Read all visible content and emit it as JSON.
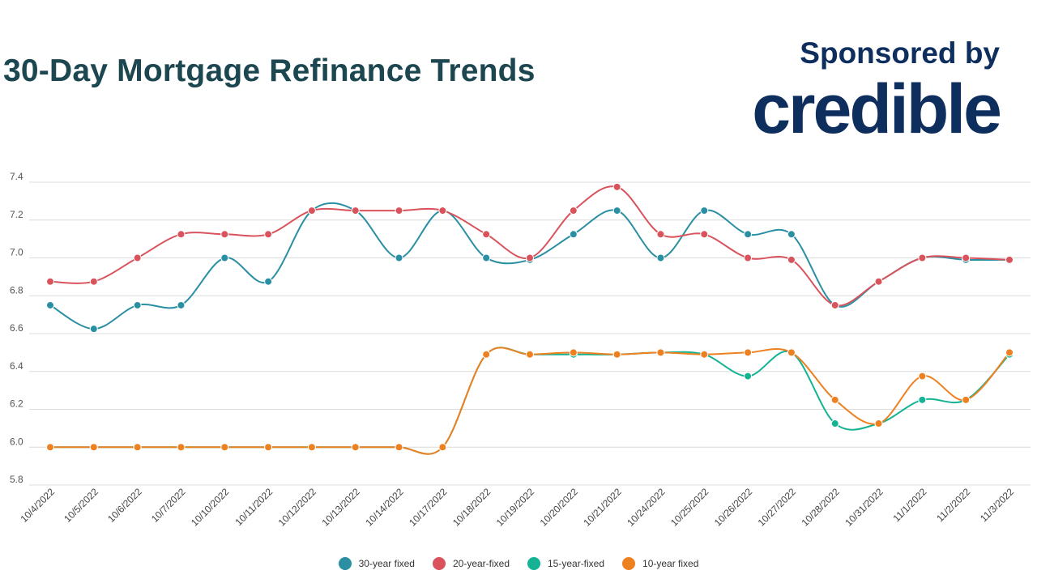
{
  "title": "30-Day Mortgage Refinance Trends",
  "sponsor": {
    "label": "Sponsored by",
    "logo_text": "credible",
    "color": "#0e2e5e"
  },
  "chart_data": {
    "type": "line",
    "title": "30-Day Mortgage Refinance Trends",
    "xlabel": "",
    "ylabel": "",
    "ylim": [
      5.8,
      7.4
    ],
    "yticks": [
      "5.8",
      "6.0",
      "6.2",
      "6.4",
      "6.6",
      "6.8",
      "7.0",
      "7.2",
      "7.4"
    ],
    "grid": true,
    "legend_position": "bottom",
    "categories": [
      "10/4/2022",
      "10/5/2022",
      "10/6/2022",
      "10/7/2022",
      "10/10/2022",
      "10/11/2022",
      "10/12/2022",
      "10/13/2022",
      "10/14/2022",
      "10/17/2022",
      "10/18/2022",
      "10/19/2022",
      "10/20/2022",
      "10/21/2022",
      "10/24/2022",
      "10/25/2022",
      "10/26/2022",
      "10/27/2022",
      "10/28/2022",
      "10/31/2022",
      "11/1/2022",
      "11/2/2022",
      "11/3/2022"
    ],
    "series": [
      {
        "name": "30-year fixed",
        "color": "#2a8fa2",
        "values": [
          6.75,
          6.625,
          6.75,
          6.75,
          7.0,
          6.875,
          7.25,
          7.25,
          7.0,
          7.25,
          7.0,
          6.99,
          7.125,
          7.25,
          7.0,
          7.25,
          7.125,
          7.125,
          6.75,
          6.875,
          7.0,
          6.99,
          6.99
        ]
      },
      {
        "name": "20-year-fixed",
        "color": "#d9535c",
        "values": [
          6.875,
          6.875,
          7.0,
          7.125,
          7.125,
          7.125,
          7.25,
          7.25,
          7.25,
          7.25,
          7.125,
          7.0,
          7.25,
          7.375,
          7.125,
          7.125,
          7.0,
          6.99,
          6.75,
          6.875,
          7.0,
          7.0,
          6.99
        ]
      },
      {
        "name": "15-year-fixed",
        "color": "#13b393",
        "values": [
          6.0,
          6.0,
          6.0,
          6.0,
          6.0,
          6.0,
          6.0,
          6.0,
          6.0,
          6.0,
          6.49,
          6.49,
          6.49,
          6.49,
          6.5,
          6.49,
          6.375,
          6.5,
          6.125,
          6.125,
          6.25,
          6.25,
          6.49
        ]
      },
      {
        "name": "10-year fixed",
        "color": "#ed8020",
        "values": [
          6.0,
          6.0,
          6.0,
          6.0,
          6.0,
          6.0,
          6.0,
          6.0,
          6.0,
          6.0,
          6.49,
          6.49,
          6.5,
          6.49,
          6.5,
          6.49,
          6.5,
          6.5,
          6.25,
          6.125,
          6.375,
          6.25,
          6.5
        ]
      }
    ]
  }
}
